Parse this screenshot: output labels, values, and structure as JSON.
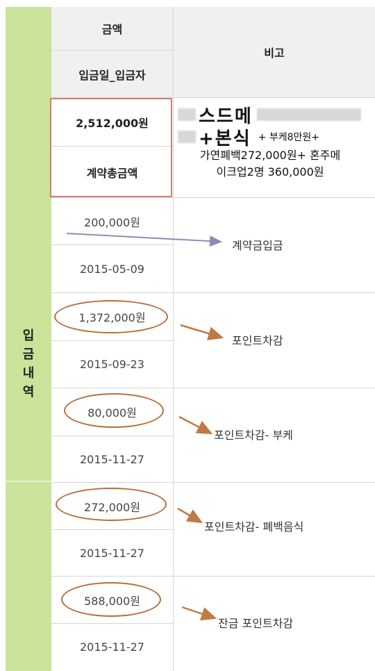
{
  "header": {
    "amount": "금액",
    "date_depositor": "입금일_입금자",
    "remarks": "비고"
  },
  "sidebar": {
    "label": [
      "입",
      "금",
      "내",
      "역"
    ]
  },
  "contract": {
    "total": "2,512,000원",
    "label": "계약총금액",
    "remark_big_1": "스드메",
    "remark_big_2": "+본식",
    "remark_tail": "+ 부케8만원+",
    "remark_line_3": "가연폐백272,000원+ 혼주메",
    "remark_line_4": "이크업2명 360,000원"
  },
  "payments": [
    {
      "amount": "200,000원",
      "date": "2015-05-09",
      "note": "계약금입금"
    },
    {
      "amount": "1,372,000원",
      "date": "2015-09-23",
      "note": "포인트차감"
    },
    {
      "amount": "80,000원",
      "date": "2015-11-27",
      "note": "포인트차감- 부케"
    },
    {
      "amount": "272,000원",
      "date": "2015-11-27",
      "note": "포인트차감- 폐백음식"
    },
    {
      "amount": "588,000원",
      "date": "2015-11-27",
      "note": "잔금 포인트차감"
    }
  ],
  "colors": {
    "sidebar": "#c9e39b",
    "header_bg": "#f0f0f0",
    "red_box": "#d77c75",
    "oval": "#b96c3a",
    "arrow_orange": "#c07a45",
    "arrow_purple": "#8c8cb8"
  }
}
